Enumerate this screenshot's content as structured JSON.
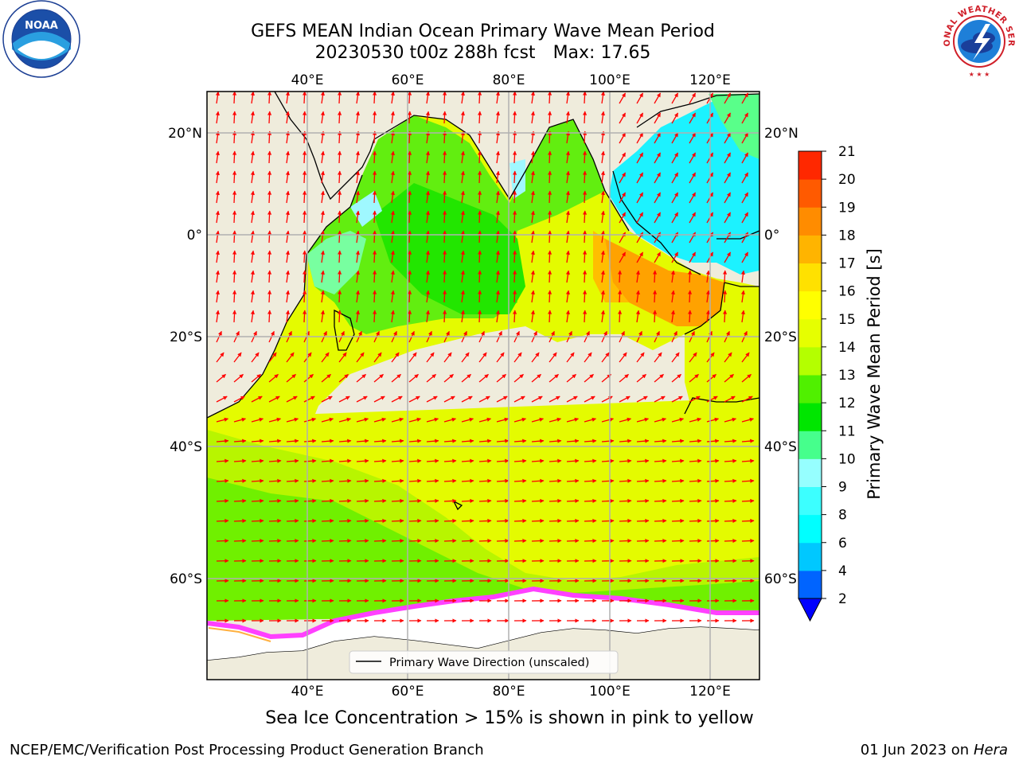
{
  "title": {
    "line1": "GEFS MEAN Indian Ocean Primary Wave Mean Period",
    "run": "20230530 t00z 288h fcst",
    "max_label": "Max: 17.65"
  },
  "map": {
    "lon_labels": [
      "40°E",
      "60°E",
      "80°E",
      "100°E",
      "120°E"
    ],
    "lat_labels": [
      "20°N",
      "0°",
      "20°S",
      "40°S",
      "60°S"
    ],
    "legend_entry": "Primary Wave Direction (unscaled)",
    "arrow_color": "#ff0000",
    "land_color": "#efecdc"
  },
  "colorbar": {
    "label": "Primary Wave Mean Period [s]",
    "ticks": [
      "2",
      "4",
      "6",
      "8",
      "9",
      "10",
      "11",
      "12",
      "13",
      "14",
      "15",
      "16",
      "17",
      "18",
      "19",
      "20",
      "21"
    ],
    "colors": [
      "#0064ff",
      "#00c8ff",
      "#00ffff",
      "#3cffff",
      "#96ffff",
      "#46ff8c",
      "#00e600",
      "#50f000",
      "#b4ff00",
      "#e6ff00",
      "#ffff00",
      "#ffe100",
      "#ffb400",
      "#ff8c00",
      "#ff5a00",
      "#ff2800"
    ],
    "under_color": "#0000ff"
  },
  "caption": "Sea Ice Concentration > 15% is shown in pink to yellow",
  "footer": {
    "left": "NCEP/EMC/Verification Post Processing Product Generation Branch",
    "date": "01 Jun 2023 on",
    "machine": "Hera"
  },
  "logos": {
    "noaa": "NOAA",
    "nws": "NATIONAL WEATHER SERVICE"
  }
}
